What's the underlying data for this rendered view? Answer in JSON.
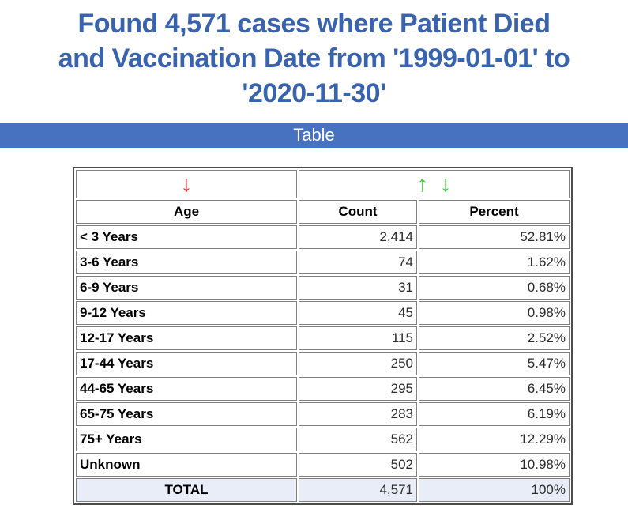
{
  "title": {
    "lines": [
      "Found 4,571 cases where Patient Died",
      "and Vaccination Date from '1999-01-01' to",
      "'2020-11-30'"
    ]
  },
  "section": {
    "label": "Table"
  },
  "sort_icons": {
    "age_desc": "↓",
    "count_asc": "↑",
    "count_desc": "↓"
  },
  "table": {
    "headers": {
      "age": "Age",
      "count": "Count",
      "percent": "Percent"
    },
    "rows": [
      {
        "age": "< 3 Years",
        "count": "2,414",
        "percent": "52.81%"
      },
      {
        "age": "3-6 Years",
        "count": "74",
        "percent": "1.62%"
      },
      {
        "age": "6-9 Years",
        "count": "31",
        "percent": "0.68%"
      },
      {
        "age": "9-12 Years",
        "count": "45",
        "percent": "0.98%"
      },
      {
        "age": "12-17 Years",
        "count": "115",
        "percent": "2.52%"
      },
      {
        "age": "17-44 Years",
        "count": "250",
        "percent": "5.47%"
      },
      {
        "age": "44-65 Years",
        "count": "295",
        "percent": "6.45%"
      },
      {
        "age": "65-75 Years",
        "count": "283",
        "percent": "6.19%"
      },
      {
        "age": "75+ Years",
        "count": "562",
        "percent": "12.29%"
      },
      {
        "age": "Unknown",
        "count": "502",
        "percent": "10.98%"
      }
    ],
    "total": {
      "label": "TOTAL",
      "count": "4,571",
      "percent": "100%"
    }
  },
  "colors": {
    "title_blue": "#3A63AE",
    "bar_blue": "#4672C0",
    "sort_red": "#EE1C1C",
    "sort_green": "#33CC33",
    "total_row_bg": "#E9EDF8",
    "cell_border": "#808080",
    "outer_border": "#4d4d4d"
  }
}
